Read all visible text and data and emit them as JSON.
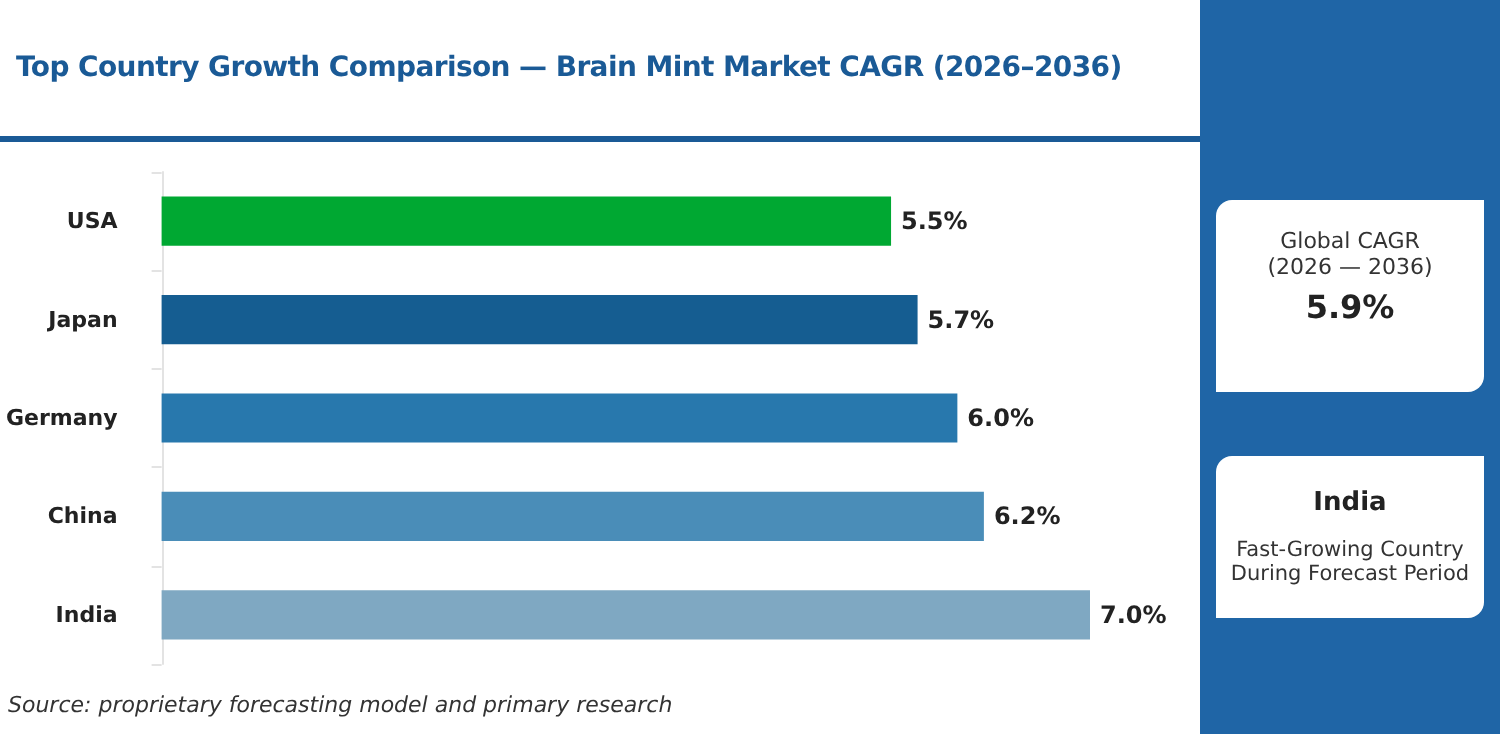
{
  "chart_data": {
    "type": "bar",
    "orientation": "horizontal",
    "title": "Top Country Growth Comparison — Brain Mint Market CAGR (2026–2036)",
    "categories": [
      "USA",
      "Japan",
      "Germany",
      "China",
      "India"
    ],
    "values": [
      5.5,
      5.7,
      6.0,
      6.2,
      7.0
    ],
    "colors": [
      "#00a832",
      "#155d91",
      "#2878ad",
      "#4a8db8",
      "#7fa8c2"
    ],
    "value_labels": [
      "5.5%",
      "5.7%",
      "6.0%",
      "6.2%",
      "7.0%"
    ],
    "grid": false,
    "annotations": [
      "Global CAGR",
      "(2026 — 2036)",
      "5.9%",
      "India",
      "Fast-Growing Country",
      "During Forecast Period",
      "Source: proprietary forecasting model and primary research"
    ]
  }
}
